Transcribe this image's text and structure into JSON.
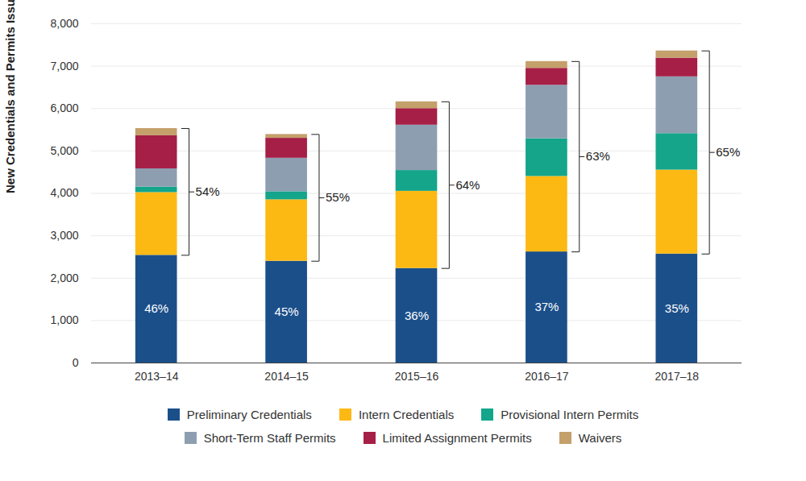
{
  "chart_data": {
    "type": "bar",
    "stacked": true,
    "grid": true,
    "legend": "bottom",
    "y_label": "New Credentials and Permits Issued",
    "categories": [
      "2013–14",
      "2014–15",
      "2015–16",
      "2016–17",
      "2017–18"
    ],
    "ylim": [
      0,
      8000
    ],
    "yticks": [
      0,
      1000,
      2000,
      3000,
      4000,
      5000,
      6000,
      7000,
      8000
    ],
    "series": [
      {
        "name": "Preliminary Credentials",
        "color": "#1b4f8a",
        "values": [
          2540,
          2400,
          2230,
          2620,
          2570
        ]
      },
      {
        "name": "Intern Credentials",
        "color": "#fdb913",
        "values": [
          1480,
          1450,
          1820,
          1780,
          1980
        ]
      },
      {
        "name": "Provisional Intern Permits",
        "color": "#14a58b",
        "values": [
          130,
          190,
          490,
          890,
          860
        ]
      },
      {
        "name": "Short-Term Staff Permits",
        "color": "#8d9eb1",
        "values": [
          430,
          790,
          1070,
          1260,
          1340
        ]
      },
      {
        "name": "Limited Assignment Permits",
        "color": "#a51f46",
        "values": [
          780,
          470,
          390,
          400,
          440
        ]
      },
      {
        "name": "Waivers",
        "color": "#c4a06b",
        "values": [
          170,
          90,
          160,
          160,
          170
        ]
      }
    ],
    "annotations": [
      {
        "text": "46%",
        "category": "2013–14",
        "series": [
          "Preliminary Credentials"
        ]
      },
      {
        "text": "45%",
        "category": "2014–15",
        "series": [
          "Preliminary Credentials"
        ]
      },
      {
        "text": "36%",
        "category": "2015–16",
        "series": [
          "Preliminary Credentials"
        ]
      },
      {
        "text": "37%",
        "category": "2016–17",
        "series": [
          "Preliminary Credentials"
        ]
      },
      {
        "text": "35%",
        "category": "2017–18",
        "series": [
          "Preliminary Credentials"
        ]
      },
      {
        "text": "54%",
        "category": "2013–14",
        "series": [
          "Intern Credentials",
          "Provisional Intern Permits",
          "Short-Term Staff Permits",
          "Limited Assignment Permits",
          "Waivers"
        ]
      },
      {
        "text": "55%",
        "category": "2014–15",
        "series": [
          "Intern Credentials",
          "Provisional Intern Permits",
          "Short-Term Staff Permits",
          "Limited Assignment Permits",
          "Waivers"
        ]
      },
      {
        "text": "64%",
        "category": "2015–16",
        "series": [
          "Intern Credentials",
          "Provisional Intern Permits",
          "Short-Term Staff Permits",
          "Limited Assignment Permits",
          "Waivers"
        ]
      },
      {
        "text": "63%",
        "category": "2016–17",
        "series": [
          "Intern Credentials",
          "Provisional Intern Permits",
          "Short-Term Staff Permits",
          "Limited Assignment Permits",
          "Waivers"
        ]
      },
      {
        "text": "65%",
        "category": "2017–18",
        "series": [
          "Intern Credentials",
          "Provisional Intern Permits",
          "Short-Term Staff Permits",
          "Limited Assignment Permits",
          "Waivers"
        ]
      }
    ]
  }
}
